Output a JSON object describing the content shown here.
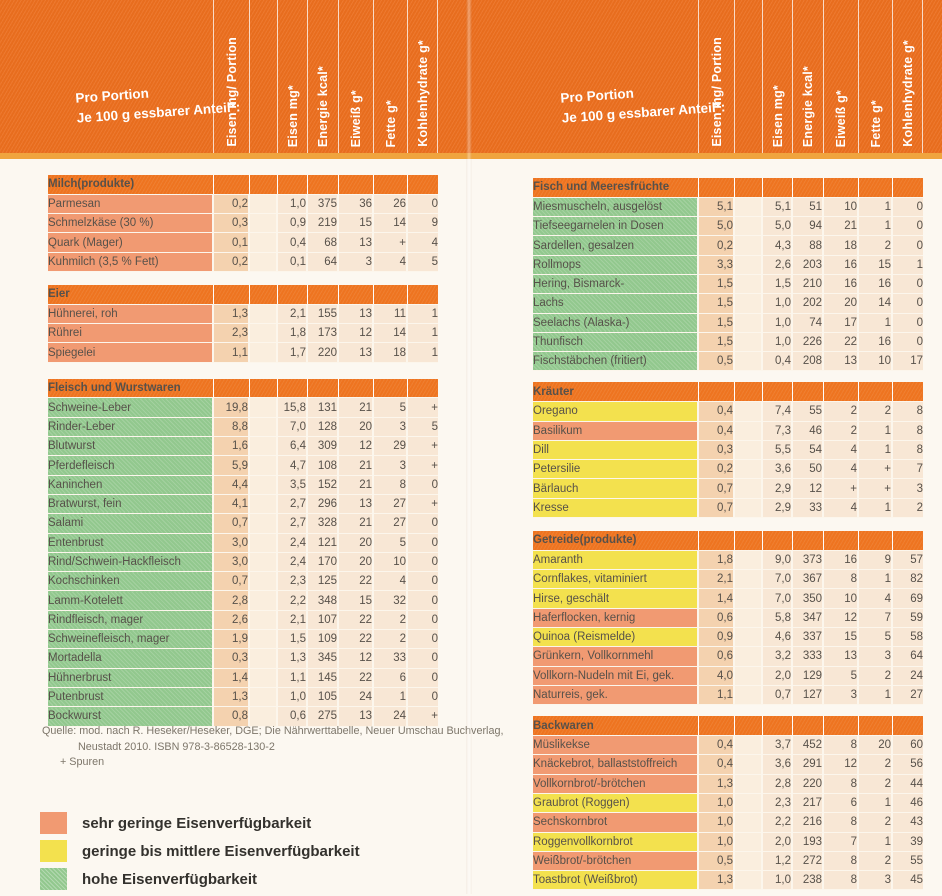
{
  "colors": {
    "header_orange": "#ec6f1f",
    "section_orange": "#ee7420",
    "amber": "#f0a43e",
    "low": "#f19a72",
    "medium": "#f3e14e",
    "high": "#92c88e"
  },
  "header": {
    "pro_portion_line1": "Pro Portion",
    "pro_portion_line2": "Je 100 g essbarer Anteil*:",
    "columns": [
      "Eisen mg/ Portion",
      "Eisen mg*",
      "Energie kcal*",
      "Eiweiß g*",
      "Fette g*",
      "Kohlenhydrate g*"
    ]
  },
  "sections_left": [
    {
      "title": "Milch(produkte)",
      "rows": [
        {
          "name": "Parmesan",
          "availability": "low",
          "values": [
            "0,2",
            "1,0",
            "375",
            "36",
            "26",
            "0"
          ]
        },
        {
          "name": "Schmelzkäse (30 %)",
          "availability": "low",
          "values": [
            "0,3",
            "0,9",
            "219",
            "15",
            "14",
            "9"
          ]
        },
        {
          "name": "Quark (Mager)",
          "availability": "low",
          "values": [
            "0,1",
            "0,4",
            "68",
            "13",
            "+",
            "4"
          ]
        },
        {
          "name": "Kuhmilch (3,5 % Fett)",
          "availability": "low",
          "values": [
            "0,2",
            "0,1",
            "64",
            "3",
            "4",
            "5"
          ]
        }
      ]
    },
    {
      "title": "Eier",
      "rows": [
        {
          "name": "Hühnerei, roh",
          "availability": "low",
          "values": [
            "1,3",
            "2,1",
            "155",
            "13",
            "11",
            "1"
          ]
        },
        {
          "name": "Rührei",
          "availability": "low",
          "values": [
            "2,3",
            "1,8",
            "173",
            "12",
            "14",
            "1"
          ]
        },
        {
          "name": "Spiegelei",
          "availability": "low",
          "values": [
            "1,1",
            "1,7",
            "220",
            "13",
            "18",
            "1"
          ]
        }
      ]
    },
    {
      "title": "Fleisch und Wurstwaren",
      "rows": [
        {
          "name": "Schweine-Leber",
          "availability": "high",
          "values": [
            "19,8",
            "15,8",
            "131",
            "21",
            "5",
            "+"
          ]
        },
        {
          "name": "Rinder-Leber",
          "availability": "high",
          "values": [
            "8,8",
            "7,0",
            "128",
            "20",
            "3",
            "5"
          ]
        },
        {
          "name": "Blutwurst",
          "availability": "high",
          "values": [
            "1,6",
            "6,4",
            "309",
            "12",
            "29",
            "+"
          ]
        },
        {
          "name": "Pferdefleisch",
          "availability": "high",
          "values": [
            "5,9",
            "4,7",
            "108",
            "21",
            "3",
            "+"
          ]
        },
        {
          "name": "Kaninchen",
          "availability": "high",
          "values": [
            "4,4",
            "3,5",
            "152",
            "21",
            "8",
            "0"
          ]
        },
        {
          "name": "Bratwurst, fein",
          "availability": "high",
          "values": [
            "4,1",
            "2,7",
            "296",
            "13",
            "27",
            "+"
          ]
        },
        {
          "name": "Salami",
          "availability": "high",
          "values": [
            "0,7",
            "2,7",
            "328",
            "21",
            "27",
            "0"
          ]
        },
        {
          "name": "Entenbrust",
          "availability": "high",
          "values": [
            "3,0",
            "2,4",
            "121",
            "20",
            "5",
            "0"
          ]
        },
        {
          "name": "Rind/Schwein-Hackfleisch",
          "availability": "high",
          "values": [
            "3,0",
            "2,4",
            "170",
            "20",
            "10",
            "0"
          ]
        },
        {
          "name": "Kochschinken",
          "availability": "high",
          "values": [
            "0,7",
            "2,3",
            "125",
            "22",
            "4",
            "0"
          ]
        },
        {
          "name": "Lamm-Kotelett",
          "availability": "high",
          "values": [
            "2,8",
            "2,2",
            "348",
            "15",
            "32",
            "0"
          ]
        },
        {
          "name": "Rindfleisch, mager",
          "availability": "high",
          "values": [
            "2,6",
            "2,1",
            "107",
            "22",
            "2",
            "0"
          ]
        },
        {
          "name": "Schweinefleisch, mager",
          "availability": "high",
          "values": [
            "1,9",
            "1,5",
            "109",
            "22",
            "2",
            "0"
          ]
        },
        {
          "name": "Mortadella",
          "availability": "high",
          "values": [
            "0,3",
            "1,3",
            "345",
            "12",
            "33",
            "0"
          ]
        },
        {
          "name": "Hühnerbrust",
          "availability": "high",
          "values": [
            "1,4",
            "1,1",
            "145",
            "22",
            "6",
            "0"
          ]
        },
        {
          "name": "Putenbrust",
          "availability": "high",
          "values": [
            "1,3",
            "1,0",
            "105",
            "24",
            "1",
            "0"
          ]
        },
        {
          "name": "Bockwurst",
          "availability": "high",
          "values": [
            "0,8",
            "0,6",
            "275",
            "13",
            "24",
            "+"
          ]
        }
      ]
    }
  ],
  "sections_right": [
    {
      "title": "Fisch und Meeresfrüchte",
      "rows": [
        {
          "name": "Miesmuscheln, ausgelöst",
          "availability": "high",
          "values": [
            "5,1",
            "5,1",
            "51",
            "10",
            "1",
            "0"
          ]
        },
        {
          "name": "Tiefseegarnelen in Dosen",
          "availability": "high",
          "values": [
            "5,0",
            "5,0",
            "94",
            "21",
            "1",
            "0"
          ]
        },
        {
          "name": "Sardellen, gesalzen",
          "availability": "high",
          "values": [
            "0,2",
            "4,3",
            "88",
            "18",
            "2",
            "0"
          ]
        },
        {
          "name": "Rollmops",
          "availability": "high",
          "values": [
            "3,3",
            "2,6",
            "203",
            "16",
            "15",
            "1"
          ]
        },
        {
          "name": "Hering, Bismarck-",
          "availability": "high",
          "values": [
            "1,5",
            "1,5",
            "210",
            "16",
            "16",
            "0"
          ]
        },
        {
          "name": "Lachs",
          "availability": "high",
          "values": [
            "1,5",
            "1,0",
            "202",
            "20",
            "14",
            "0"
          ]
        },
        {
          "name": "Seelachs (Alaska-)",
          "availability": "high",
          "values": [
            "1,5",
            "1,0",
            "74",
            "17",
            "1",
            "0"
          ]
        },
        {
          "name": "Thunfisch",
          "availability": "high",
          "values": [
            "1,5",
            "1,0",
            "226",
            "22",
            "16",
            "0"
          ]
        },
        {
          "name": "Fischstäbchen (fritiert)",
          "availability": "high",
          "values": [
            "0,5",
            "0,4",
            "208",
            "13",
            "10",
            "17"
          ]
        }
      ]
    },
    {
      "title": "Kräuter",
      "rows": [
        {
          "name": "Oregano",
          "availability": "medium",
          "values": [
            "0,4",
            "7,4",
            "55",
            "2",
            "2",
            "8"
          ]
        },
        {
          "name": "Basilikum",
          "availability": "low",
          "values": [
            "0,4",
            "7,3",
            "46",
            "2",
            "1",
            "8"
          ]
        },
        {
          "name": "Dill",
          "availability": "medium",
          "values": [
            "0,3",
            "5,5",
            "54",
            "4",
            "1",
            "8"
          ]
        },
        {
          "name": "Petersilie",
          "availability": "medium",
          "values": [
            "0,2",
            "3,6",
            "50",
            "4",
            "+",
            "7"
          ]
        },
        {
          "name": "Bärlauch",
          "availability": "medium",
          "values": [
            "0,7",
            "2,9",
            "12",
            "+",
            "+",
            "3"
          ]
        },
        {
          "name": "Kresse",
          "availability": "medium",
          "values": [
            "0,7",
            "2,9",
            "33",
            "4",
            "1",
            "2"
          ]
        }
      ]
    },
    {
      "title": "Getreide(produkte)",
      "rows": [
        {
          "name": "Amaranth",
          "availability": "medium",
          "values": [
            "1,8",
            "9,0",
            "373",
            "16",
            "9",
            "57"
          ]
        },
        {
          "name": "Cornflakes, vitaminiert",
          "availability": "medium",
          "values": [
            "2,1",
            "7,0",
            "367",
            "8",
            "1",
            "82"
          ]
        },
        {
          "name": "Hirse, geschält",
          "availability": "medium",
          "values": [
            "1,4",
            "7,0",
            "350",
            "10",
            "4",
            "69"
          ]
        },
        {
          "name": "Haferflocken, kernig",
          "availability": "low",
          "values": [
            "0,6",
            "5,8",
            "347",
            "12",
            "7",
            "59"
          ]
        },
        {
          "name": "Quinoa (Reismelde)",
          "availability": "medium",
          "values": [
            "0,9",
            "4,6",
            "337",
            "15",
            "5",
            "58"
          ]
        },
        {
          "name": "Grünkern, Vollkornmehl",
          "availability": "low",
          "values": [
            "0,6",
            "3,2",
            "333",
            "13",
            "3",
            "64"
          ]
        },
        {
          "name": "Vollkorn-Nudeln mit Ei, gek.",
          "availability": "low",
          "values": [
            "4,0",
            "2,0",
            "129",
            "5",
            "2",
            "24"
          ]
        },
        {
          "name": "Naturreis, gek.",
          "availability": "low",
          "values": [
            "1,1",
            "0,7",
            "127",
            "3",
            "1",
            "27"
          ]
        }
      ]
    },
    {
      "title": "Backwaren",
      "rows": [
        {
          "name": "Müslikekse",
          "availability": "low",
          "values": [
            "0,4",
            "3,7",
            "452",
            "8",
            "20",
            "60"
          ]
        },
        {
          "name": "Knäckebrot, ballaststoffreich",
          "availability": "low",
          "values": [
            "0,4",
            "3,6",
            "291",
            "12",
            "2",
            "56"
          ]
        },
        {
          "name": "Vollkornbrot/-brötchen",
          "availability": "low",
          "values": [
            "1,3",
            "2,8",
            "220",
            "8",
            "2",
            "44"
          ]
        },
        {
          "name": "Graubrot (Roggen)",
          "availability": "medium",
          "values": [
            "1,0",
            "2,3",
            "217",
            "6",
            "1",
            "46"
          ]
        },
        {
          "name": "Sechskornbrot",
          "availability": "low",
          "values": [
            "1,0",
            "2,2",
            "216",
            "8",
            "2",
            "43"
          ]
        },
        {
          "name": "Roggenvollkornbrot",
          "availability": "medium",
          "values": [
            "1,0",
            "2,0",
            "193",
            "7",
            "1",
            "39"
          ]
        },
        {
          "name": "Weißbrot/-brötchen",
          "availability": "low",
          "values": [
            "0,5",
            "1,2",
            "272",
            "8",
            "2",
            "55"
          ]
        },
        {
          "name": "Toastbrot (Weißbrot)",
          "availability": "medium",
          "values": [
            "1,3",
            "1,0",
            "238",
            "8",
            "3",
            "45"
          ]
        }
      ]
    }
  ],
  "source_note": {
    "line1": "Quelle: mod. nach R. Heseker/Heseker, DGE; Die Nährwerttabelle, Neuer Umschau Buchverlag,",
    "line2": "Neustadt 2010. ISBN 978-3-86528-130-2",
    "line3": "+ Spuren"
  },
  "legend": {
    "items": [
      {
        "label": "sehr geringe Eisenverfügbarkeit",
        "color": "#f19a72",
        "level": "low"
      },
      {
        "label": "geringe bis mittlere Eisenverfügbarkeit",
        "color": "#f3e14e",
        "level": "medium"
      },
      {
        "label": "hohe Eisenverfügbarkeit",
        "color": "#92c88e",
        "level": "high"
      }
    ]
  }
}
